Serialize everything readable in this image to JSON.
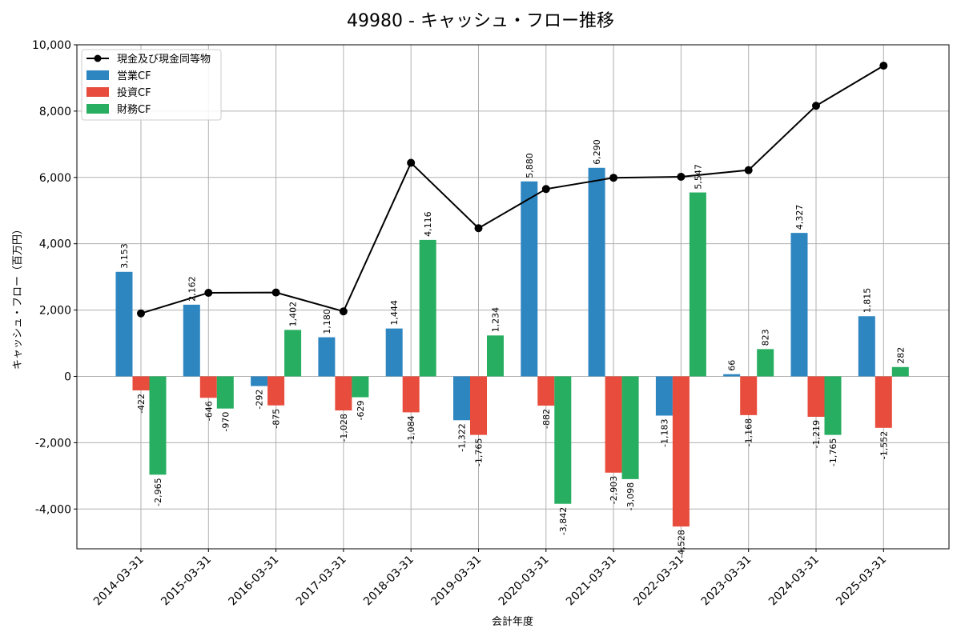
{
  "colors": {
    "operating": "#2e86c1",
    "investing": "#e74c3c",
    "financing": "#27ae60",
    "cash": "#000000"
  },
  "chart_data": {
    "type": "bar",
    "title": "49980 - キャッシュ・フロー推移",
    "xlabel": "会計年度",
    "ylabel": "キャッシュ・フロー（百万円）",
    "ylim": [
      -5200,
      10000
    ],
    "yticks": [
      -4000,
      -2000,
      0,
      2000,
      4000,
      6000,
      8000,
      10000
    ],
    "ytick_labels": [
      "-4,000",
      "-2,000",
      "0",
      "2,000",
      "4,000",
      "6,000",
      "8,000",
      "10,000"
    ],
    "grid": true,
    "legend_position": "top-left",
    "categories": [
      "2014-03-31",
      "2015-03-31",
      "2016-03-31",
      "2017-03-31",
      "2018-03-31",
      "2019-03-31",
      "2020-03-31",
      "2021-03-31",
      "2022-03-31",
      "2023-03-31",
      "2024-03-31",
      "2025-03-31"
    ],
    "series": [
      {
        "name": "営業CF",
        "kind": "bar",
        "color_key": "operating",
        "values": [
          3153,
          2162,
          -292,
          1180,
          1444,
          -1322,
          5880,
          6290,
          -1183,
          66,
          4327,
          1815
        ],
        "labels": [
          "3,153",
          "2,162",
          "-292",
          "1,180",
          "1,444",
          "-1,322",
          "5,880",
          "6,290",
          "-1,183",
          "66",
          "4,327",
          "1,815"
        ]
      },
      {
        "name": "投資CF",
        "kind": "bar",
        "color_key": "investing",
        "values": [
          -422,
          -646,
          -875,
          -1028,
          -1084,
          -1765,
          -882,
          -2903,
          -4528,
          -1168,
          -1219,
          -1552
        ],
        "labels": [
          "-422",
          "-646",
          "-875",
          "-1,028",
          "-1,084",
          "-1,765",
          "-882",
          "-2,903",
          "-4,528",
          "-1,168",
          "-1,219",
          "-1,552"
        ]
      },
      {
        "name": "財務CF",
        "kind": "bar",
        "color_key": "financing",
        "values": [
          -2965,
          -970,
          1402,
          -629,
          4116,
          1234,
          -3842,
          -3098,
          5547,
          823,
          -1765,
          282
        ],
        "labels": [
          "-2,965",
          "-970",
          "1,402",
          "-629",
          "4,116",
          "1,234",
          "-3,842",
          "-3,098",
          "5,547",
          "823",
          "-1,765",
          "282"
        ]
      },
      {
        "name": "現金及び現金同等物",
        "kind": "line",
        "color_key": "cash",
        "values": [
          1900,
          2520,
          2530,
          1960,
          6440,
          4470,
          5650,
          5990,
          6020,
          6220,
          8160,
          9370
        ]
      }
    ]
  }
}
